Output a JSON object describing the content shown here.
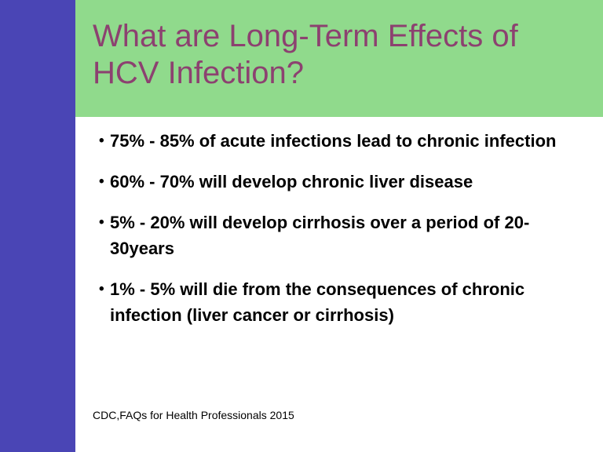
{
  "slide": {
    "title_lines": [
      "What are Long-Term Effects of",
      "HCV Infection?"
    ],
    "bullet_marker": "•",
    "bullets": [
      "75% - 85% of acute infections lead to chronic infection",
      "60% - 70% will develop chronic liver disease",
      "5% - 20% will develop cirrhosis over a period of 20-30years",
      "1% - 5% will die from the consequences of chronic infection (liver cancer or cirrhosis)"
    ],
    "footer": "CDC,FAQs for Health Professionals 2015"
  },
  "colors": {
    "sidebar_bar": "#4a45b5",
    "header_bg": "#90da8c",
    "title_text": "#8c4170",
    "body_text": "#000000"
  }
}
